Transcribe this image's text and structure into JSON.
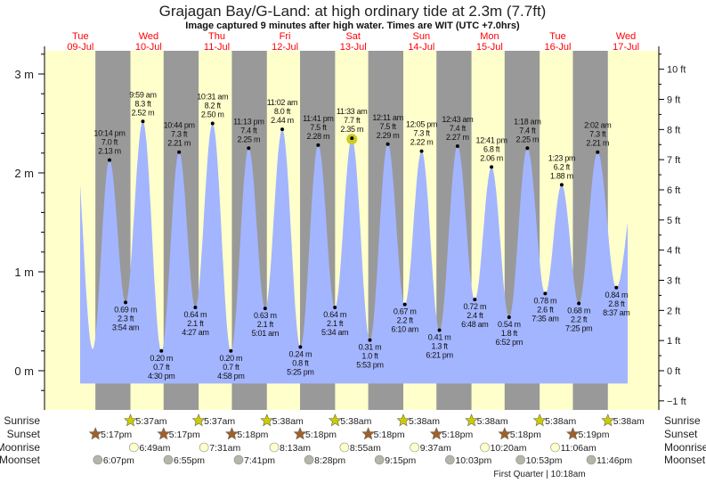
{
  "chart_data": {
    "type": "area",
    "title": "Grajagan Bay/G-Land: at high  ordinary tide at 2.3m (7.7ft)",
    "subtitle": "Image captured 9 minutes after high water. Times are WIT (UTC +7.0hrs)",
    "days": [
      {
        "dow": "Tue",
        "date": "09-Jul"
      },
      {
        "dow": "Wed",
        "date": "10-Jul"
      },
      {
        "dow": "Thu",
        "date": "11-Jul"
      },
      {
        "dow": "Fri",
        "date": "12-Jul"
      },
      {
        "dow": "Sat",
        "date": "13-Jul"
      },
      {
        "dow": "Sun",
        "date": "14-Jul"
      },
      {
        "dow": "Mon",
        "date": "15-Jul"
      },
      {
        "dow": "Tue",
        "date": "16-Jul"
      },
      {
        "dow": "Wed",
        "date": "17-Jul"
      }
    ],
    "y_left": {
      "unit": "m",
      "ticks": [
        "0 m",
        "1 m",
        "2 m",
        "3 m"
      ],
      "ylim": [
        -0.45,
        3.2
      ]
    },
    "y_right": {
      "unit": "ft",
      "ticks": [
        "−1 ft",
        "0 ft",
        "1 ft",
        "2 ft",
        "3 ft",
        "4 ft",
        "5 ft",
        "6 ft",
        "7 ft",
        "8 ft",
        "9 ft",
        "10 ft"
      ]
    },
    "extremes": [
      {
        "day": 0,
        "time": "10:14 pm",
        "type": "high",
        "m": "2.13 m",
        "ft": "7.0 ft",
        "value": 2.13
      },
      {
        "day": 1,
        "time": "3:54 am",
        "type": "low",
        "m": "0.69 m",
        "ft": "2.3 ft",
        "value": 0.69
      },
      {
        "day": 1,
        "time": "9:59 am",
        "type": "high",
        "m": "2.52 m",
        "ft": "8.3 ft",
        "value": 2.52
      },
      {
        "day": 1,
        "time": "4:30 pm",
        "type": "low",
        "m": "0.20 m",
        "ft": "0.7 ft",
        "value": 0.2
      },
      {
        "day": 1,
        "time": "10:44 pm",
        "type": "high",
        "m": "2.21 m",
        "ft": "7.3 ft",
        "value": 2.21
      },
      {
        "day": 2,
        "time": "4:27 am",
        "type": "low",
        "m": "0.64 m",
        "ft": "2.1 ft",
        "value": 0.64
      },
      {
        "day": 2,
        "time": "10:31 am",
        "type": "high",
        "m": "2.50 m",
        "ft": "8.2 ft",
        "value": 2.5
      },
      {
        "day": 2,
        "time": "4:58 pm",
        "type": "low",
        "m": "0.20 m",
        "ft": "0.7 ft",
        "value": 0.2
      },
      {
        "day": 2,
        "time": "11:13 pm",
        "type": "high",
        "m": "2.25 m",
        "ft": "7.4 ft",
        "value": 2.25
      },
      {
        "day": 3,
        "time": "5:01 am",
        "type": "low",
        "m": "0.63 m",
        "ft": "2.1 ft",
        "value": 0.63
      },
      {
        "day": 3,
        "time": "11:02 am",
        "type": "high",
        "m": "2.44 m",
        "ft": "8.0 ft",
        "value": 2.44
      },
      {
        "day": 3,
        "time": "5:25 pm",
        "type": "low",
        "m": "0.24 m",
        "ft": "0.8 ft",
        "value": 0.24
      },
      {
        "day": 3,
        "time": "11:41 pm",
        "type": "high",
        "m": "2.28 m",
        "ft": "7.5 ft",
        "value": 2.28
      },
      {
        "day": 4,
        "time": "5:34 am",
        "type": "low",
        "m": "0.64 m",
        "ft": "2.1 ft",
        "value": 0.64
      },
      {
        "day": 4,
        "time": "11:33 am",
        "type": "high",
        "m": "2.35 m",
        "ft": "7.7 ft",
        "value": 2.35,
        "current": true
      },
      {
        "day": 4,
        "time": "5:53 pm",
        "type": "low",
        "m": "0.31 m",
        "ft": "1.0 ft",
        "value": 0.31
      },
      {
        "day": 5,
        "time": "12:11 am",
        "type": "high",
        "m": "2.29 m",
        "ft": "7.5 ft",
        "value": 2.29
      },
      {
        "day": 5,
        "time": "6:10 am",
        "type": "low",
        "m": "0.67 m",
        "ft": "2.2 ft",
        "value": 0.67
      },
      {
        "day": 5,
        "time": "12:05 pm",
        "type": "high",
        "m": "2.22 m",
        "ft": "7.3 ft",
        "value": 2.22
      },
      {
        "day": 5,
        "time": "6:21 pm",
        "type": "low",
        "m": "0.41 m",
        "ft": "1.3 ft",
        "value": 0.41
      },
      {
        "day": 6,
        "time": "12:43 am",
        "type": "high",
        "m": "2.27 m",
        "ft": "7.4 ft",
        "value": 2.27
      },
      {
        "day": 6,
        "time": "6:48 am",
        "type": "low",
        "m": "0.72 m",
        "ft": "2.4 ft",
        "value": 0.72
      },
      {
        "day": 6,
        "time": "12:41 pm",
        "type": "high",
        "m": "2.06 m",
        "ft": "6.8 ft",
        "value": 2.06
      },
      {
        "day": 6,
        "time": "6:52 pm",
        "type": "low",
        "m": "0.54 m",
        "ft": "1.8 ft",
        "value": 0.54
      },
      {
        "day": 7,
        "time": "1:18 am",
        "type": "high",
        "m": "2.25 m",
        "ft": "7.4 ft",
        "value": 2.25
      },
      {
        "day": 7,
        "time": "7:35 am",
        "type": "low",
        "m": "0.78 m",
        "ft": "2.6 ft",
        "value": 0.78
      },
      {
        "day": 7,
        "time": "1:23 pm",
        "type": "high",
        "m": "1.88 m",
        "ft": "6.2 ft",
        "value": 1.88
      },
      {
        "day": 7,
        "time": "7:25 pm",
        "type": "low",
        "m": "0.68 m",
        "ft": "2.2 ft",
        "value": 0.68
      },
      {
        "day": 8,
        "time": "2:02 am",
        "type": "high",
        "m": "2.21 m",
        "ft": "7.3 ft",
        "value": 2.21
      },
      {
        "day": 8,
        "time": "8:37 am",
        "type": "low",
        "m": "0.84 m",
        "ft": "2.8 ft",
        "value": 0.84
      }
    ],
    "rows": {
      "sunrise": {
        "label": "Sunrise",
        "items": [
          {
            "day": 1,
            "time": "5:37am"
          },
          {
            "day": 2,
            "time": "5:37am"
          },
          {
            "day": 3,
            "time": "5:38am"
          },
          {
            "day": 4,
            "time": "5:38am"
          },
          {
            "day": 5,
            "time": "5:38am"
          },
          {
            "day": 6,
            "time": "5:38am"
          },
          {
            "day": 7,
            "time": "5:38am"
          },
          {
            "day": 8,
            "time": "5:38am"
          }
        ]
      },
      "sunset": {
        "label": "Sunset",
        "items": [
          {
            "day": 0,
            "time": "5:17pm"
          },
          {
            "day": 1,
            "time": "5:17pm"
          },
          {
            "day": 2,
            "time": "5:18pm"
          },
          {
            "day": 3,
            "time": "5:18pm"
          },
          {
            "day": 4,
            "time": "5:18pm"
          },
          {
            "day": 5,
            "time": "5:18pm"
          },
          {
            "day": 6,
            "time": "5:18pm"
          },
          {
            "day": 7,
            "time": "5:19pm"
          }
        ]
      },
      "moonrise": {
        "label": "Moonrise",
        "items": [
          {
            "day": 1,
            "time": "6:49am"
          },
          {
            "day": 2,
            "time": "7:31am"
          },
          {
            "day": 3,
            "time": "8:13am"
          },
          {
            "day": 4,
            "time": "8:55am"
          },
          {
            "day": 5,
            "time": "9:37am"
          },
          {
            "day": 6,
            "time": "10:20am"
          },
          {
            "day": 7,
            "time": "11:06am"
          }
        ]
      },
      "moonset": {
        "label": "Moonset",
        "items": [
          {
            "day": 0,
            "time": "6:07pm"
          },
          {
            "day": 1,
            "time": "6:55pm"
          },
          {
            "day": 2,
            "time": "7:41pm"
          },
          {
            "day": 3,
            "time": "8:28pm"
          },
          {
            "day": 4,
            "time": "9:15pm"
          },
          {
            "day": 5,
            "time": "10:03pm"
          },
          {
            "day": 6,
            "time": "10:53pm"
          },
          {
            "day": 7,
            "time": "11:46pm"
          }
        ]
      }
    },
    "moon_phase": "First Quarter | 10:18am",
    "colors": {
      "day": "#ffffcc",
      "night": "#999999",
      "water": "#a3b5ff",
      "day_label": "#ff0000",
      "sunrise": "#cccc00",
      "sunset": "#a0602a",
      "moonrise": "#ffffcc",
      "moonset": "#b5b5a8",
      "current": "#cccc22"
    }
  }
}
